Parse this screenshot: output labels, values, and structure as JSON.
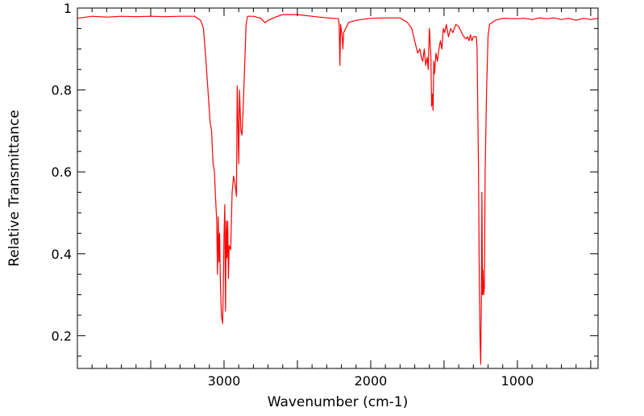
{
  "chart_data": {
    "type": "line",
    "title": "",
    "xlabel": "Wavenumber (cm-1)",
    "ylabel": "Relative Transmittance",
    "xlim": [
      4000,
      450
    ],
    "ylim": [
      0.12,
      1.0
    ],
    "x_ticks": [
      {
        "value": 3000,
        "label": "3000"
      },
      {
        "value": 2000,
        "label": "2000"
      },
      {
        "value": 1000,
        "label": "1000"
      }
    ],
    "y_ticks": [
      {
        "value": 1.0,
        "label": "1"
      },
      {
        "value": 0.8,
        "label": "0.8"
      },
      {
        "value": 0.6,
        "label": "0.6"
      },
      {
        "value": 0.4,
        "label": "0.4"
      },
      {
        "value": 0.2,
        "label": "0.2"
      }
    ],
    "grid": false,
    "series": [
      {
        "name": "Transmittance",
        "color": "#ff0000",
        "points": [
          [
            4000,
            0.975
          ],
          [
            3900,
            0.98
          ],
          [
            3800,
            0.978
          ],
          [
            3700,
            0.98
          ],
          [
            3600,
            0.979
          ],
          [
            3500,
            0.98
          ],
          [
            3400,
            0.979
          ],
          [
            3300,
            0.98
          ],
          [
            3200,
            0.98
          ],
          [
            3160,
            0.97
          ],
          [
            3140,
            0.95
          ],
          [
            3125,
            0.88
          ],
          [
            3110,
            0.8
          ],
          [
            3095,
            0.72
          ],
          [
            3085,
            0.7
          ],
          [
            3075,
            0.62
          ],
          [
            3065,
            0.6
          ],
          [
            3060,
            0.55
          ],
          [
            3050,
            0.48
          ],
          [
            3045,
            0.35
          ],
          [
            3040,
            0.49
          ],
          [
            3035,
            0.38
          ],
          [
            3030,
            0.45
          ],
          [
            3025,
            0.33
          ],
          [
            3018,
            0.25
          ],
          [
            3010,
            0.23
          ],
          [
            3005,
            0.32
          ],
          [
            3000,
            0.45
          ],
          [
            2995,
            0.52
          ],
          [
            2990,
            0.26
          ],
          [
            2985,
            0.48
          ],
          [
            2980,
            0.39
          ],
          [
            2975,
            0.48
          ],
          [
            2970,
            0.34
          ],
          [
            2965,
            0.42
          ],
          [
            2955,
            0.41
          ],
          [
            2945,
            0.55
          ],
          [
            2935,
            0.59
          ],
          [
            2925,
            0.57
          ],
          [
            2915,
            0.54
          ],
          [
            2910,
            0.81
          ],
          [
            2900,
            0.62
          ],
          [
            2895,
            0.8
          ],
          [
            2885,
            0.7
          ],
          [
            2878,
            0.69
          ],
          [
            2870,
            0.75
          ],
          [
            2860,
            0.85
          ],
          [
            2850,
            0.96
          ],
          [
            2840,
            0.98
          ],
          [
            2800,
            0.98
          ],
          [
            2750,
            0.975
          ],
          [
            2720,
            0.964
          ],
          [
            2700,
            0.97
          ],
          [
            2650,
            0.978
          ],
          [
            2600,
            0.984
          ],
          [
            2500,
            0.984
          ],
          [
            2400,
            0.98
          ],
          [
            2300,
            0.976
          ],
          [
            2250,
            0.975
          ],
          [
            2220,
            0.974
          ],
          [
            2215,
            0.96
          ],
          [
            2210,
            0.86
          ],
          [
            2205,
            0.96
          ],
          [
            2195,
            0.93
          ],
          [
            2190,
            0.9
          ],
          [
            2185,
            0.94
          ],
          [
            2150,
            0.965
          ],
          [
            2100,
            0.97
          ],
          [
            2000,
            0.975
          ],
          [
            1900,
            0.976
          ],
          [
            1800,
            0.976
          ],
          [
            1750,
            0.965
          ],
          [
            1720,
            0.95
          ],
          [
            1700,
            0.92
          ],
          [
            1680,
            0.89
          ],
          [
            1665,
            0.9
          ],
          [
            1655,
            0.88
          ],
          [
            1645,
            0.87
          ],
          [
            1635,
            0.9
          ],
          [
            1625,
            0.86
          ],
          [
            1615,
            0.88
          ],
          [
            1608,
            0.85
          ],
          [
            1600,
            0.95
          ],
          [
            1595,
            0.92
          ],
          [
            1590,
            0.88
          ],
          [
            1585,
            0.76
          ],
          [
            1580,
            0.79
          ],
          [
            1575,
            0.75
          ],
          [
            1570,
            0.87
          ],
          [
            1565,
            0.84
          ],
          [
            1555,
            0.89
          ],
          [
            1545,
            0.87
          ],
          [
            1535,
            0.9
          ],
          [
            1525,
            0.92
          ],
          [
            1515,
            0.9
          ],
          [
            1505,
            0.95
          ],
          [
            1495,
            0.94
          ],
          [
            1485,
            0.96
          ],
          [
            1470,
            0.93
          ],
          [
            1455,
            0.95
          ],
          [
            1440,
            0.94
          ],
          [
            1420,
            0.96
          ],
          [
            1400,
            0.955
          ],
          [
            1380,
            0.94
          ],
          [
            1365,
            0.93
          ],
          [
            1350,
            0.925
          ],
          [
            1340,
            0.93
          ],
          [
            1330,
            0.92
          ],
          [
            1320,
            0.935
          ],
          [
            1310,
            0.92
          ],
          [
            1300,
            0.93
          ],
          [
            1280,
            0.93
          ],
          [
            1275,
            0.9
          ],
          [
            1265,
            0.6
          ],
          [
            1260,
            0.35
          ],
          [
            1255,
            0.2
          ],
          [
            1250,
            0.13
          ],
          [
            1245,
            0.3
          ],
          [
            1242,
            0.55
          ],
          [
            1238,
            0.3
          ],
          [
            1234,
            0.36
          ],
          [
            1230,
            0.3
          ],
          [
            1225,
            0.32
          ],
          [
            1220,
            0.6
          ],
          [
            1210,
            0.8
          ],
          [
            1200,
            0.93
          ],
          [
            1190,
            0.96
          ],
          [
            1150,
            0.97
          ],
          [
            1100,
            0.975
          ],
          [
            1000,
            0.974
          ],
          [
            950,
            0.975
          ],
          [
            900,
            0.972
          ],
          [
            850,
            0.976
          ],
          [
            800,
            0.974
          ],
          [
            750,
            0.976
          ],
          [
            700,
            0.972
          ],
          [
            650,
            0.975
          ],
          [
            600,
            0.97
          ],
          [
            550,
            0.975
          ],
          [
            500,
            0.972
          ],
          [
            450,
            0.975
          ]
        ]
      }
    ]
  }
}
